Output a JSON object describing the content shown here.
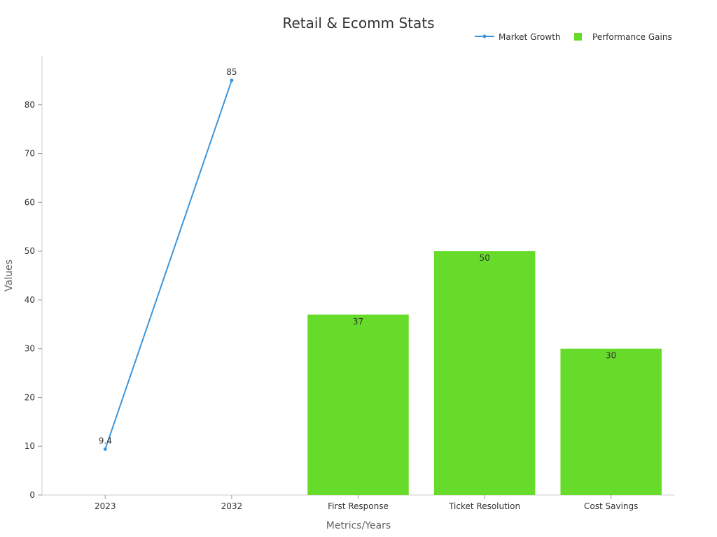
{
  "chart_data": {
    "type": "bar",
    "title": "Retail & Ecomm Stats",
    "xlabel": "Metrics/Years",
    "ylabel": "Values",
    "categories": [
      "2023",
      "2032",
      "First Response",
      "Ticket Resolution",
      "Cost Savings"
    ],
    "ylim": [
      0,
      90
    ],
    "yticks": [
      0,
      10,
      20,
      30,
      40,
      50,
      60,
      70,
      80
    ],
    "grid": false,
    "legend_position": "top-right",
    "series": [
      {
        "name": "Market Growth",
        "type": "line",
        "color": "#3b96dd",
        "points": [
          {
            "category": "2023",
            "value": 9.4,
            "label": "9.4"
          },
          {
            "category": "2032",
            "value": 85,
            "label": "85"
          }
        ]
      },
      {
        "name": "Performance Gains",
        "type": "bar",
        "color": "#66db29",
        "points": [
          {
            "category": "First Response",
            "value": 37,
            "label": "37"
          },
          {
            "category": "Ticket Resolution",
            "value": 50,
            "label": "50"
          },
          {
            "category": "Cost Savings",
            "value": 30,
            "label": "30"
          }
        ]
      }
    ]
  }
}
